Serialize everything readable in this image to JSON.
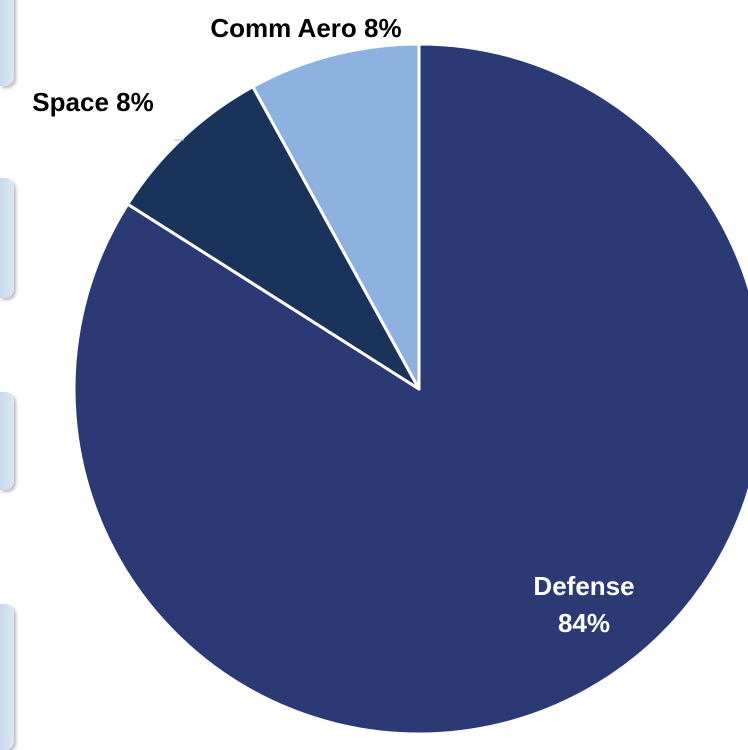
{
  "chart_data": {
    "type": "pie",
    "slices": [
      {
        "label": "Defense",
        "value": 84,
        "color": "#2b3a74",
        "label_text": [
          "Defense",
          "84%"
        ],
        "label_color": "#ffffff"
      },
      {
        "label": "Space",
        "value": 8,
        "color": "#1a335a",
        "label_text": [
          "Space 8%"
        ],
        "label_color": "#000000"
      },
      {
        "label": "Comm Aero",
        "value": 8,
        "color": "#8db2e0",
        "label_text": [
          "Comm Aero 8%"
        ],
        "label_color": "#000000"
      }
    ],
    "start_angle_deg": 0,
    "direction": "clockwise",
    "slice_border_color": "#ffffff",
    "legend": "none"
  }
}
